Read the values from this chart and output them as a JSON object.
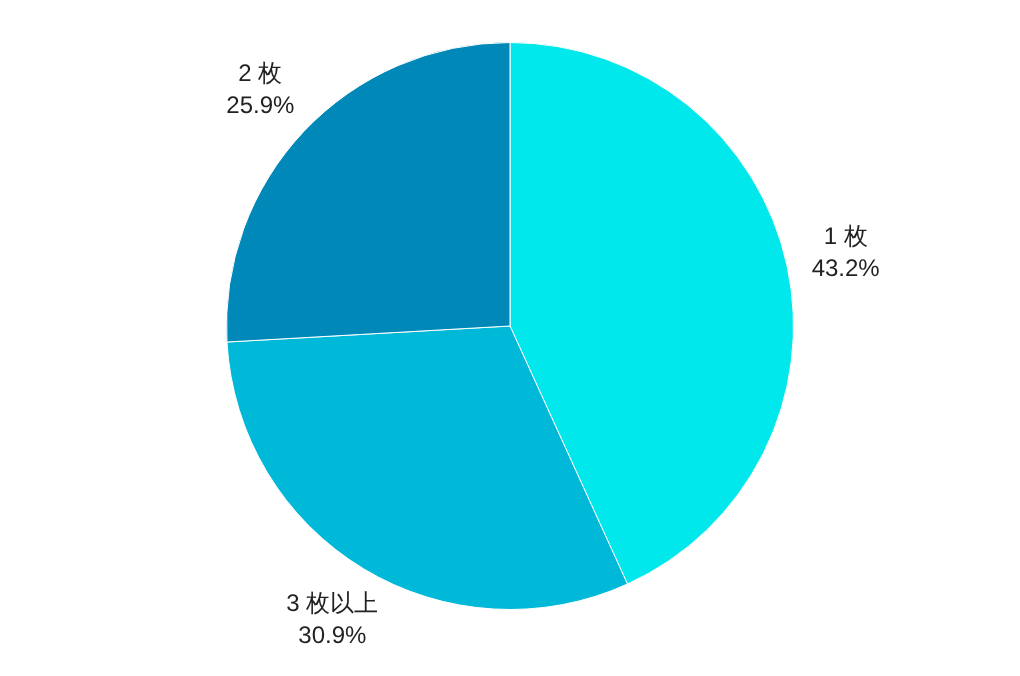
{
  "chart_data": {
    "type": "pie",
    "categories": [
      "1 枚",
      "3 枚以上",
      "2 枚"
    ],
    "values": [
      43.2,
      30.9,
      25.9
    ],
    "value_labels": [
      "43.2%",
      "30.9%",
      "25.9%"
    ],
    "colors": [
      "#00e8ec",
      "#00b9d8",
      "#0089b8"
    ],
    "legend": false
  }
}
